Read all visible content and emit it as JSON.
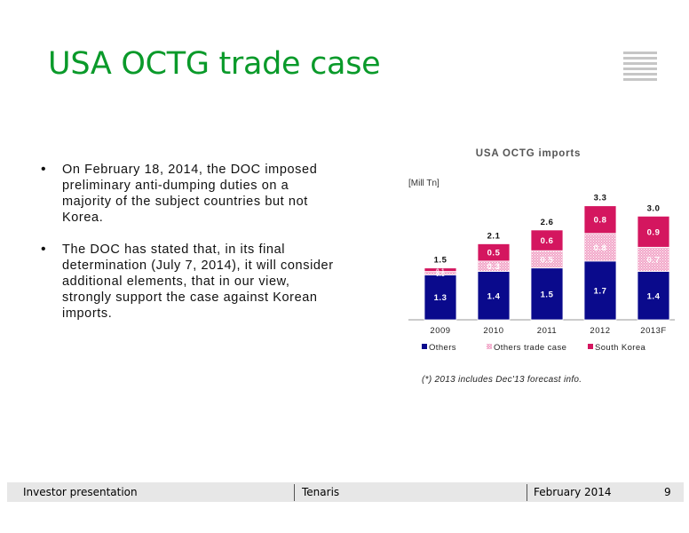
{
  "title": "USA OCTG trade case",
  "bullets": [
    "On February 18, 2014, the DOC imposed preliminary anti-dumping duties on a majority of the subject countries but not Korea.",
    "The DOC has stated that, in its final determination (July 7, 2014), it will consider additional elements, that in our view, strongly support the case against Korean imports."
  ],
  "bullet_symbol": "•",
  "chart_data": {
    "type": "bar",
    "stacked": true,
    "title": "USA OCTG imports",
    "unit_label": "[Mill Tn]",
    "categories": [
      "2009",
      "2010",
      "2011",
      "2012",
      "2013F"
    ],
    "totals": [
      1.5,
      2.1,
      2.6,
      3.3,
      3.0
    ],
    "series": [
      {
        "name": "Others",
        "values": [
          1.3,
          1.4,
          1.5,
          1.7,
          1.4
        ],
        "labels": [
          "1.3",
          "1.4",
          "1.5",
          "1.7",
          "1.4"
        ],
        "color": "#0a0a8c"
      },
      {
        "name": "Others trade case",
        "values": [
          0.1,
          0.3,
          0.5,
          0.8,
          0.7
        ],
        "labels": [
          "0.1",
          "0.3",
          "0.5",
          "0.8",
          "0.7"
        ],
        "color": "#e870a8"
      },
      {
        "name": "South Korea",
        "values": [
          0.1,
          0.5,
          0.6,
          0.8,
          0.9
        ],
        "labels": [
          "0.1",
          "0.5",
          "0.6",
          "0.8",
          "0.9"
        ],
        "color": "#d4165f"
      }
    ],
    "ylim": [
      0,
      3.6
    ],
    "grid": false,
    "legend": "bottom",
    "footnote": "(*) 2013 includes Dec'13 forecast info."
  },
  "footer": {
    "left": "Investor presentation",
    "center": "Tenaris",
    "right": "February 2014",
    "page": "9"
  }
}
